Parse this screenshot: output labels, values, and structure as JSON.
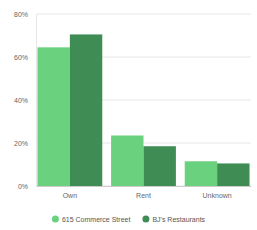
{
  "chart_data": {
    "type": "bar",
    "categories": [
      "Own",
      "Rent",
      "Unknown"
    ],
    "series": [
      {
        "name": "615 Commerce Street",
        "color": "#6ad27f",
        "values": [
          64.5,
          23.5,
          11.5
        ]
      },
      {
        "name": "BJ's Restaurants",
        "color": "#3f8d55",
        "values": [
          70.5,
          18.5,
          10.5
        ]
      }
    ],
    "ylim": [
      0,
      80
    ],
    "yticks": [
      {
        "value": 0,
        "label": "0%"
      },
      {
        "value": 20,
        "label": "20%"
      },
      {
        "value": 40,
        "label": "40%"
      },
      {
        "value": 60,
        "label": "60%"
      },
      {
        "value": 80,
        "label": "80%"
      }
    ],
    "grid": true,
    "legend": "bottom"
  }
}
